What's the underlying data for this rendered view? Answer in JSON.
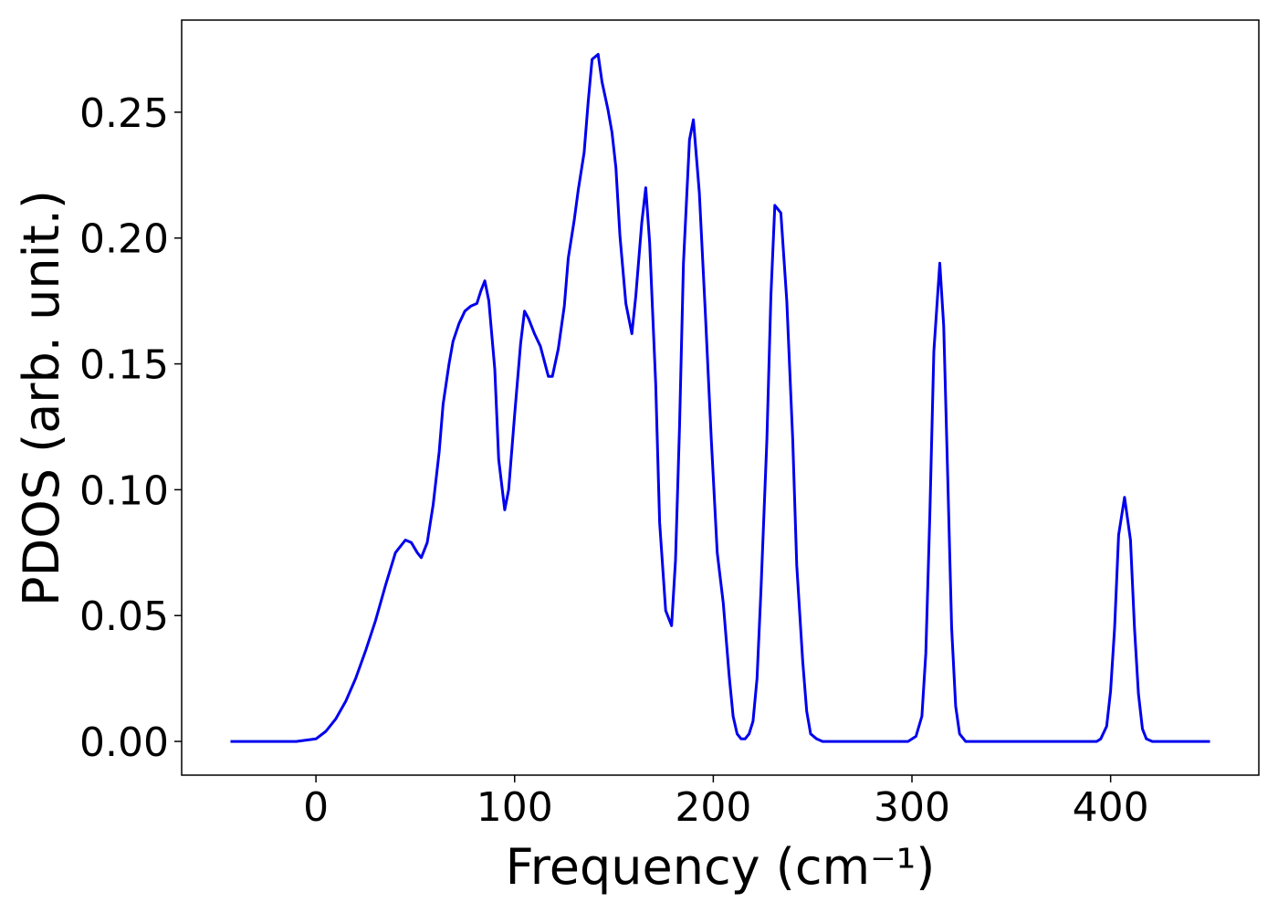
{
  "chart_data": {
    "type": "line",
    "xlabel": "Frequency (cm⁻¹)",
    "ylabel": "PDOS (arb. unit.)",
    "x": [
      -43,
      -10,
      0,
      5,
      10,
      15,
      20,
      25,
      30,
      35,
      40,
      45,
      48,
      51,
      53,
      56,
      59,
      62,
      64,
      67,
      69,
      72,
      75,
      78,
      81,
      83,
      85,
      87,
      90,
      92,
      95,
      97,
      100,
      103,
      105,
      107,
      110,
      113,
      117,
      119,
      122,
      125,
      127,
      130,
      132,
      135,
      137,
      139,
      142,
      144,
      147,
      149,
      151,
      153,
      156,
      159,
      161,
      164,
      166,
      168,
      171,
      173,
      176,
      179,
      181,
      183,
      185,
      188,
      190,
      193,
      196,
      199,
      202,
      205,
      208,
      210,
      212,
      214,
      216,
      218,
      220,
      222,
      224,
      227,
      229,
      231,
      234,
      237,
      240,
      242,
      245,
      247,
      249,
      252,
      255,
      298,
      302,
      305,
      307,
      309,
      311,
      314,
      316,
      318,
      320,
      322,
      324,
      327,
      393,
      395,
      398,
      400,
      402,
      404,
      407,
      410,
      412,
      414,
      416,
      418,
      421,
      450
    ],
    "series": [
      {
        "name": "PDOS",
        "color": "#0000ee",
        "values": [
          0,
          0,
          0.001,
          0.004,
          0.009,
          0.016,
          0.025,
          0.036,
          0.048,
          0.062,
          0.075,
          0.08,
          0.079,
          0.075,
          0.073,
          0.079,
          0.094,
          0.115,
          0.134,
          0.15,
          0.159,
          0.166,
          0.171,
          0.173,
          0.174,
          0.179,
          0.183,
          0.175,
          0.148,
          0.112,
          0.092,
          0.1,
          0.13,
          0.158,
          0.171,
          0.168,
          0.162,
          0.157,
          0.145,
          0.145,
          0.156,
          0.173,
          0.192,
          0.207,
          0.219,
          0.234,
          0.254,
          0.271,
          0.273,
          0.262,
          0.251,
          0.242,
          0.228,
          0.201,
          0.174,
          0.162,
          0.177,
          0.206,
          0.22,
          0.198,
          0.142,
          0.087,
          0.052,
          0.046,
          0.072,
          0.125,
          0.19,
          0.239,
          0.247,
          0.218,
          0.17,
          0.12,
          0.075,
          0.055,
          0.026,
          0.01,
          0.003,
          0.001,
          0.001,
          0.003,
          0.008,
          0.025,
          0.06,
          0.12,
          0.177,
          0.213,
          0.21,
          0.175,
          0.12,
          0.07,
          0.032,
          0.012,
          0.003,
          0.001,
          0,
          0,
          0.002,
          0.01,
          0.035,
          0.09,
          0.155,
          0.19,
          0.165,
          0.105,
          0.045,
          0.014,
          0.003,
          0,
          0,
          0.001,
          0.006,
          0.02,
          0.045,
          0.082,
          0.097,
          0.08,
          0.045,
          0.019,
          0.005,
          0.001,
          0,
          0
        ]
      }
    ],
    "xlim": [
      -67.6,
      474.6
    ],
    "ylim": [
      -0.0134,
      0.2866
    ],
    "xticks": [
      0,
      100,
      200,
      300,
      400
    ],
    "yticks": [
      {
        "value": 0,
        "label": "0.00"
      },
      {
        "value": 0.05,
        "label": "0.05"
      },
      {
        "value": 0.1,
        "label": "0.10"
      },
      {
        "value": 0.15,
        "label": "0.15"
      },
      {
        "value": 0.2,
        "label": "0.20"
      },
      {
        "value": 0.25,
        "label": "0.25"
      }
    ]
  }
}
